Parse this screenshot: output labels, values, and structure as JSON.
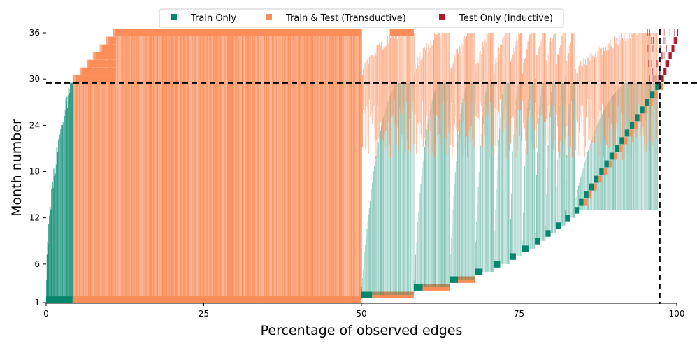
{
  "chart_data": {
    "type": "heatmap",
    "title": "",
    "xlabel": "Percentage of observed edges",
    "ylabel": "Month number",
    "xlim": [
      0,
      100
    ],
    "ylim": [
      1,
      36
    ],
    "x_ticks": [
      0,
      25,
      50,
      75,
      100
    ],
    "y_ticks": [
      1,
      6,
      12,
      18,
      24,
      30,
      36
    ],
    "legend": {
      "placement": "top-center",
      "entries": [
        {
          "name": "Train Only",
          "color": "#00876c"
        },
        {
          "name": "Train & Test (Transductive)",
          "color": "#fc8d59"
        },
        {
          "name": "Test Only (Inductive)",
          "color": "#b2182b"
        }
      ]
    },
    "train_test_split_month": 29.5,
    "inductive_threshold_pct": 97.3,
    "edge_groups": [
      {
        "start_month": 1,
        "x_start": 0.0,
        "x_end": 4.2,
        "train_only_end": 4.2,
        "continuation_end": 50.0,
        "top_month": 36
      },
      {
        "start_month": 2,
        "x_start": 50.0,
        "x_end": 51.7,
        "continuation_end": 58.3,
        "top_month": 36
      },
      {
        "start_month": 3,
        "x_start": 58.3,
        "x_end": 59.7,
        "continuation_end": 64.0,
        "top_month": 36
      },
      {
        "start_month": 4,
        "x_start": 64.0,
        "x_end": 65.3,
        "continuation_end": 68.0,
        "top_month": 36
      },
      {
        "start_month": 5,
        "x_start": 68.0,
        "x_end": 69.2,
        "top_month": 36
      },
      {
        "start_month": 6,
        "x_start": 71.0,
        "x_end": 72.0,
        "top_month": 36
      },
      {
        "start_month": 7,
        "x_start": 73.5,
        "x_end": 74.5,
        "top_month": 36
      },
      {
        "start_month": 8,
        "x_start": 75.5,
        "x_end": 76.5,
        "top_month": 36
      },
      {
        "start_month": 9,
        "x_start": 77.5,
        "x_end": 78.3,
        "top_month": 36
      },
      {
        "start_month": 10,
        "x_start": 79.2,
        "x_end": 80.0,
        "top_month": 36
      },
      {
        "start_month": 11,
        "x_start": 80.8,
        "x_end": 81.6,
        "top_month": 36
      },
      {
        "start_month": 12,
        "x_start": 82.3,
        "x_end": 83.1,
        "top_month": 36
      },
      {
        "start_month": 13,
        "x_start": 83.8,
        "x_end": 84.5,
        "top_month": 36
      }
    ]
  }
}
